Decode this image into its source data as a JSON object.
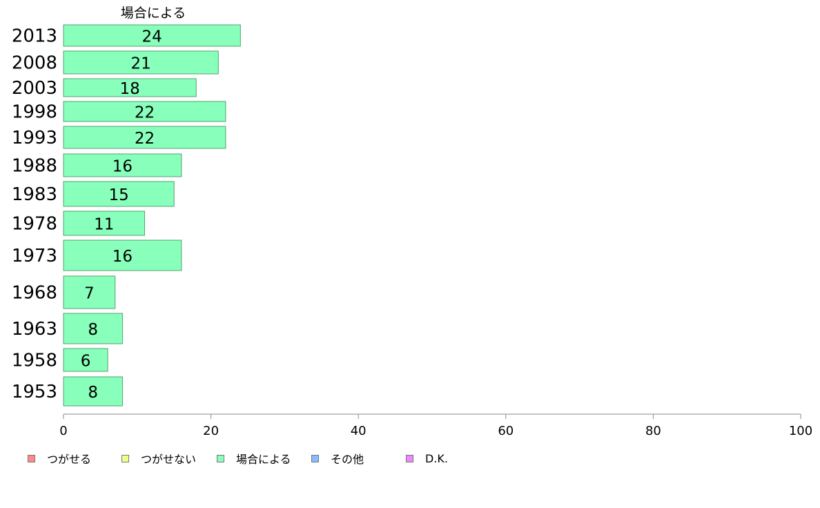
{
  "chart_data": {
    "type": "bar",
    "orientation": "horizontal",
    "series_title": "場合による",
    "categories": [
      "2013",
      "2008",
      "2003",
      "1998",
      "1993",
      "1988",
      "1983",
      "1978",
      "1973",
      "1968",
      "1963",
      "1958",
      "1953"
    ],
    "values": [
      24,
      21,
      18,
      22,
      22,
      16,
      15,
      11,
      16,
      7,
      8,
      6,
      8
    ],
    "xlim": [
      0,
      100
    ],
    "x_ticks": [
      0,
      20,
      40,
      60,
      80,
      100
    ],
    "bar_color": "#88ffbb",
    "grid": false,
    "legend_position": "bottom-left",
    "legend": [
      {
        "label": "つがせる",
        "color": "#ff8888"
      },
      {
        "label": "つがせない",
        "color": "#eeff88"
      },
      {
        "label": "場合による",
        "color": "#88ffbb"
      },
      {
        "label": "その他",
        "color": "#88bbff"
      },
      {
        "label": "D.K.",
        "color": "#ee88ff"
      }
    ]
  }
}
